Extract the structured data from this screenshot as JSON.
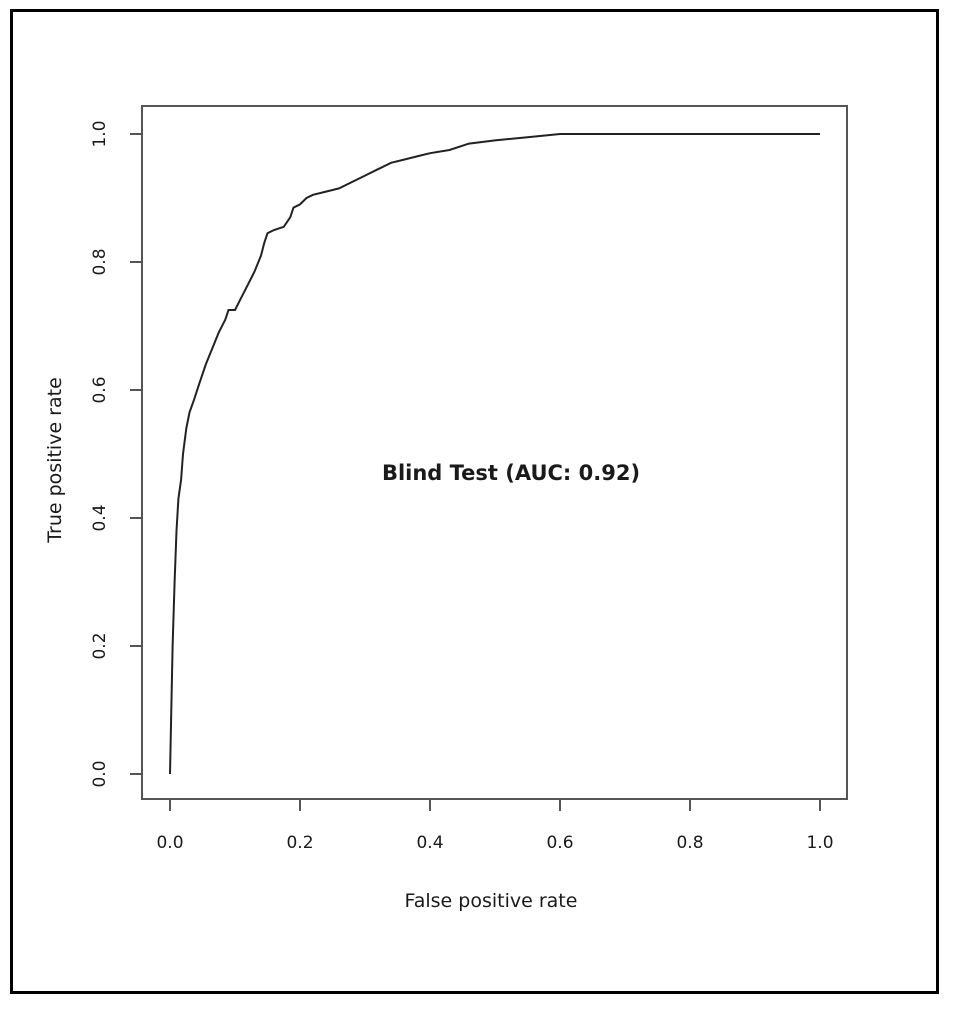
{
  "chart_data": {
    "type": "line",
    "title": "",
    "xlabel": "False positive rate",
    "ylabel": "True positive rate",
    "xlim": [
      0,
      1
    ],
    "ylim": [
      0,
      1
    ],
    "xticks": [
      "0.0",
      "0.2",
      "0.4",
      "0.6",
      "0.8",
      "1.0"
    ],
    "yticks": [
      "0.0",
      "0.2",
      "0.4",
      "0.6",
      "0.8",
      "1.0"
    ],
    "grid": false,
    "annotation": "Blind Test (AUC: 0.92)",
    "series": [
      {
        "color": "#222222",
        "points": [
          [
            0.0,
            0.0
          ],
          [
            0.002,
            0.1
          ],
          [
            0.004,
            0.2
          ],
          [
            0.007,
            0.3
          ],
          [
            0.01,
            0.38
          ],
          [
            0.013,
            0.43
          ],
          [
            0.017,
            0.46
          ],
          [
            0.02,
            0.5
          ],
          [
            0.025,
            0.54
          ],
          [
            0.03,
            0.565
          ],
          [
            0.037,
            0.585
          ],
          [
            0.045,
            0.61
          ],
          [
            0.055,
            0.64
          ],
          [
            0.065,
            0.665
          ],
          [
            0.075,
            0.69
          ],
          [
            0.085,
            0.71
          ],
          [
            0.09,
            0.725
          ],
          [
            0.1,
            0.725
          ],
          [
            0.11,
            0.745
          ],
          [
            0.12,
            0.765
          ],
          [
            0.13,
            0.785
          ],
          [
            0.14,
            0.81
          ],
          [
            0.145,
            0.83
          ],
          [
            0.15,
            0.845
          ],
          [
            0.16,
            0.85
          ],
          [
            0.175,
            0.855
          ],
          [
            0.185,
            0.87
          ],
          [
            0.19,
            0.885
          ],
          [
            0.2,
            0.89
          ],
          [
            0.21,
            0.9
          ],
          [
            0.22,
            0.905
          ],
          [
            0.24,
            0.91
          ],
          [
            0.26,
            0.915
          ],
          [
            0.28,
            0.925
          ],
          [
            0.3,
            0.935
          ],
          [
            0.32,
            0.945
          ],
          [
            0.34,
            0.955
          ],
          [
            0.36,
            0.96
          ],
          [
            0.38,
            0.965
          ],
          [
            0.4,
            0.97
          ],
          [
            0.43,
            0.975
          ],
          [
            0.46,
            0.985
          ],
          [
            0.5,
            0.99
          ],
          [
            0.55,
            0.995
          ],
          [
            0.6,
            1.0
          ],
          [
            0.7,
            1.0
          ],
          [
            0.8,
            1.0
          ],
          [
            1.0,
            1.0
          ]
        ]
      }
    ]
  }
}
